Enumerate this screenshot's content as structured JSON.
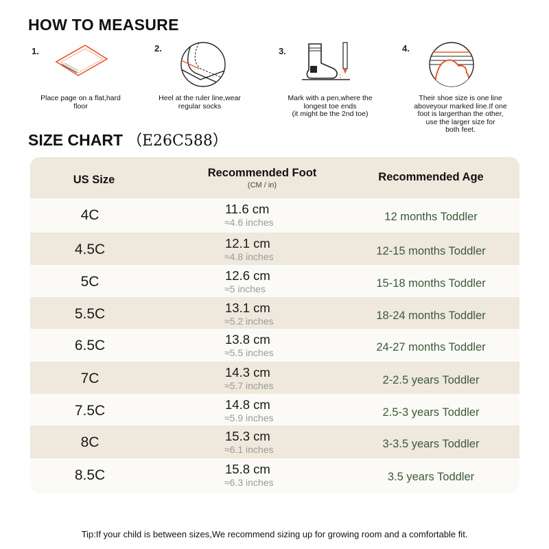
{
  "how_to_measure": {
    "title": "HOW TO MEASURE",
    "steps": [
      {
        "num": "1.",
        "icon": "paper-page-icon",
        "text": "Place page on a flat,hard\nfloor"
      },
      {
        "num": "2.",
        "icon": "heel-ruler-icon",
        "text": "Heel at the ruler line,wear\nregular socks"
      },
      {
        "num": "3.",
        "icon": "sock-pen-icon",
        "text": "Mark with a pen,where the\nlongest toe ends\n(it might be the 2nd toe)"
      },
      {
        "num": "4.",
        "icon": "toe-line-icon",
        "text": "Their shoe size is one line\naboveyour marked line.If one\nfoot is largerthan the other,\nuse the larger size for\nboth feet."
      }
    ]
  },
  "size_chart": {
    "title": "SIZE CHART",
    "code": "（E26C588）",
    "headers": {
      "us_size": "US Size",
      "foot": "Recommended Foot",
      "foot_unit": "(CM / in)",
      "age": "Recommended Age"
    },
    "rows": [
      {
        "size": "4C",
        "cm": "11.6 cm",
        "inches": "≈4.6 inches",
        "age": "12 months Toddler"
      },
      {
        "size": "4.5C",
        "cm": "12.1 cm",
        "inches": "≈4.8 inches",
        "age": "12-15 months Toddler"
      },
      {
        "size": "5C",
        "cm": "12.6 cm",
        "inches": "≈5 inches",
        "age": "15-18 months Toddler"
      },
      {
        "size": "5.5C",
        "cm": "13.1 cm",
        "inches": "≈5.2 inches",
        "age": "18-24 months Toddler"
      },
      {
        "size": "6.5C",
        "cm": "13.8 cm",
        "inches": "≈5.5 inches",
        "age": "24-27 months Toddler"
      },
      {
        "size": "7C",
        "cm": "14.3 cm",
        "inches": "≈5.7 inches",
        "age": "2-2.5 years Toddler"
      },
      {
        "size": "7.5C",
        "cm": "14.8 cm",
        "inches": "≈5.9 inches",
        "age": "2.5-3 years Toddler"
      },
      {
        "size": "8C",
        "cm": "15.3 cm",
        "inches": "≈6.1 inches",
        "age": "3-3.5 years Toddler"
      },
      {
        "size": "8.5C",
        "cm": "15.8 cm",
        "inches": "≈6.3 inches",
        "age": "3.5 years Toddler"
      }
    ]
  },
  "tip": "Tip:If your child is between sizes,We recommend sizing up for growing room and a comfortable fit.",
  "colors": {
    "accent": "#e8582a",
    "header_bg": "#efe8dc",
    "age_text": "#3b5a3a"
  }
}
